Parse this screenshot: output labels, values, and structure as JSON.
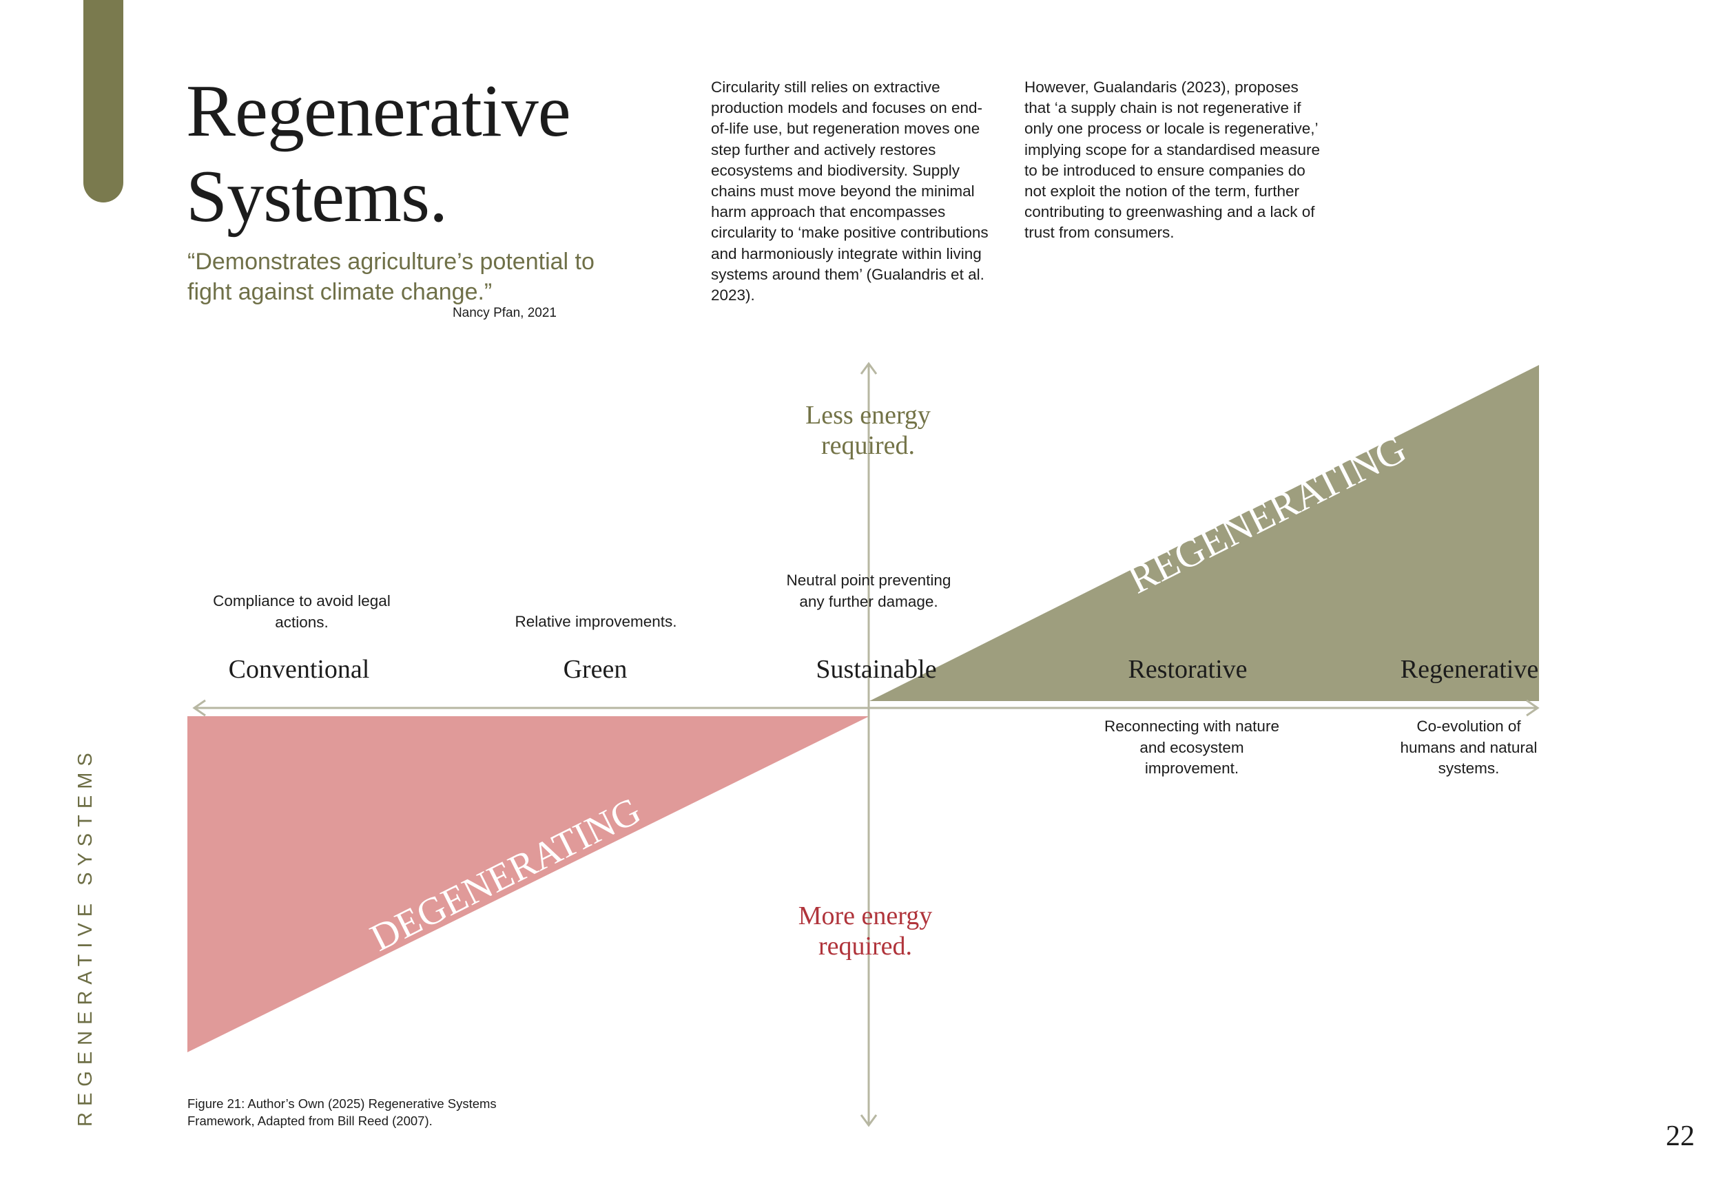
{
  "header": {
    "title_line_1": "Regenerative",
    "title_line_2": "Systems.",
    "quote": "“Demonstrates agriculture’s potential to fight against climate change.”",
    "quote_author": "Nancy Pfan, 2021"
  },
  "body": {
    "column_1": "Circularity still relies on extractive production models and focuses on end-of-life use, but regeneration moves one step further and actively restores ecosystems and biodiversity. Supply chains must move beyond the minimal harm approach that encompasses circularity to ‘make positive contributions and harmoniously integrate within living systems around them’ (Gualandris et al. 2023).",
    "column_2": "However, Gualandaris (2023), proposes that ‘a supply chain is not regenerative if only one process or locale is regenerative,’ implying scope for a standardised measure to be introduced to ensure companies do not exploit the notion of the term, further contributing to greenwashing and a lack of trust from consumers."
  },
  "diagram": {
    "less_energy": "Less energy required.",
    "more_energy": "More energy required.",
    "regenerating_label": "REGENERATING",
    "degenerating_label": "DEGENERATING",
    "stages": [
      {
        "label": "Conventional",
        "description": "Compliance to avoid legal actions."
      },
      {
        "label": "Green",
        "description": "Relative improvements."
      },
      {
        "label": "Sustainable",
        "description": "Neutral point preventing any further damage."
      },
      {
        "label": "Restorative",
        "description": "Reconnecting with nature and ecosystem improvement."
      },
      {
        "label": "Regenerative",
        "description": "Co-evolution of humans and natural systems."
      }
    ],
    "colors": {
      "regenerating_fill": "#9e9e7e",
      "degenerating_fill": "#e09a99",
      "axis": "#b7b7a2",
      "less_energy_text": "#737347",
      "more_energy_text": "#b0343b"
    }
  },
  "footer": {
    "side_label": "REGENERATIVE SYSTEMS",
    "caption": "Figure 21: Author’s Own (2025) Regenerative Systems Framework, Adapted from Bill Reed (2007).",
    "page_number": "22"
  }
}
